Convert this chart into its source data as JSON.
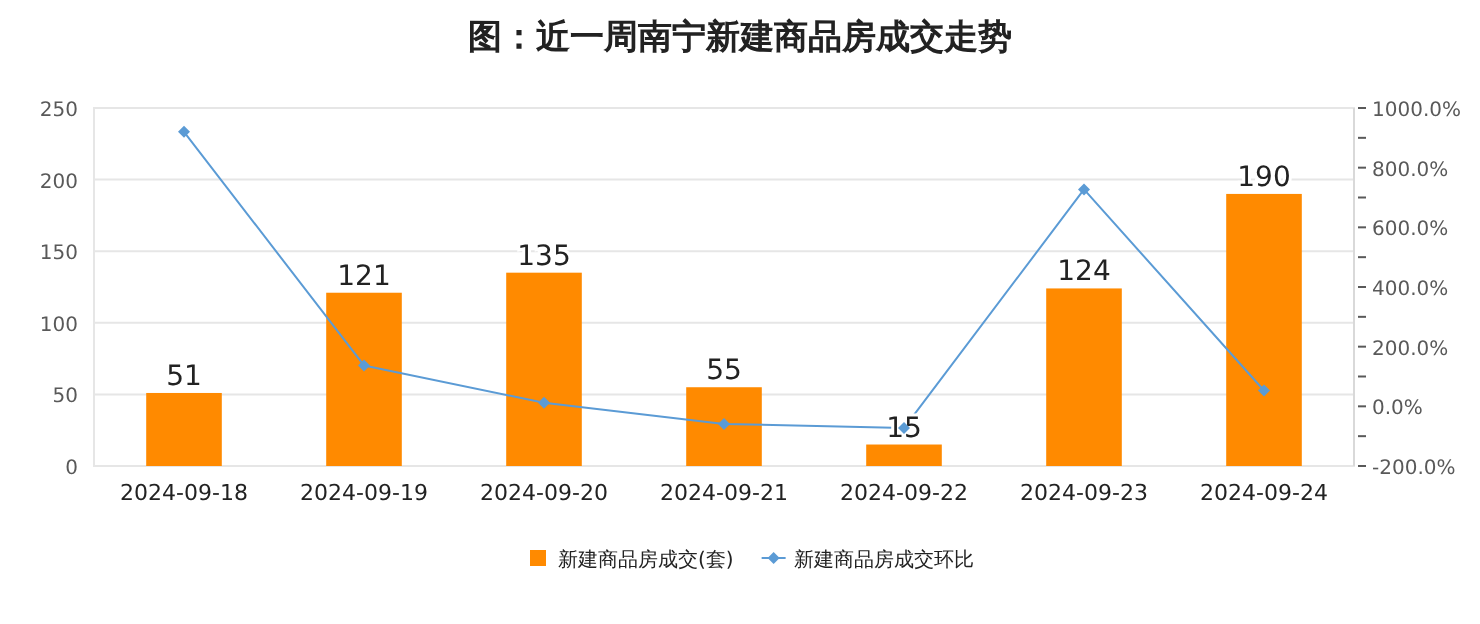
{
  "chart_data": {
    "type": "bar",
    "title": "图：近一周南宁新建商品房成交走势",
    "categories": [
      "2024-09-18",
      "2024-09-19",
      "2024-09-20",
      "2024-09-21",
      "2024-09-22",
      "2024-09-23",
      "2024-09-24"
    ],
    "series": [
      {
        "name": "新建商品房成交(套)",
        "color": "#ff8a00",
        "values": [
          51,
          121,
          135,
          55,
          15,
          124,
          190
        ],
        "value_labels": [
          "51",
          "121",
          "135",
          "55",
          "15",
          "124",
          "190"
        ]
      },
      {
        "name": "新建商品房成交环比",
        "type": "line",
        "axis": "y2",
        "color": "#5b9bd5",
        "values": [
          920,
          137,
          12,
          -59,
          -73,
          727,
          53
        ]
      }
    ],
    "marker": "diamond",
    "ylim": [
      0,
      250
    ],
    "yticks": [
      0,
      50,
      100,
      150,
      200,
      250
    ],
    "y2lim": [
      -200,
      1000
    ],
    "y2ticks": [
      {
        "value": -200,
        "label": "-200.0%"
      },
      {
        "value": -100,
        "label": null
      },
      {
        "value": 0,
        "label": "0.0%"
      },
      {
        "value": 100,
        "label": null
      },
      {
        "value": 200,
        "label": "200.0%"
      },
      {
        "value": 300,
        "label": null
      },
      {
        "value": 400,
        "label": "400.0%"
      },
      {
        "value": 500,
        "label": null
      },
      {
        "value": 600,
        "label": "600.0%"
      },
      {
        "value": 700,
        "label": null
      },
      {
        "value": 800,
        "label": "800.0%"
      },
      {
        "value": 900,
        "label": null
      },
      {
        "value": 1000,
        "label": "1000.0%"
      }
    ],
    "grid": "y",
    "legend": "bottom"
  }
}
